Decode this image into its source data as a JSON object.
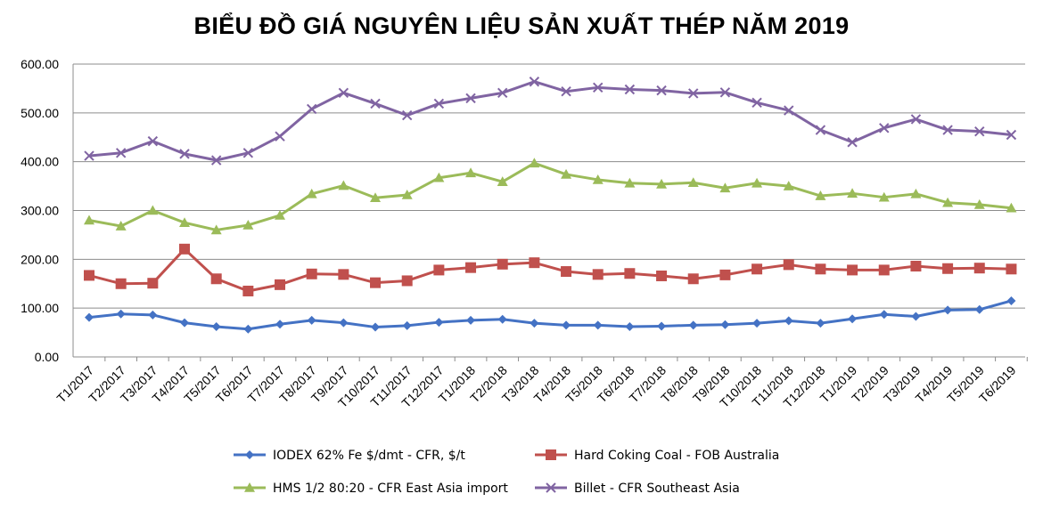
{
  "chart_data": {
    "type": "line",
    "title": "BIỂU ĐỒ GIÁ NGUYÊN LIỆU SẢN XUẤT THÉP NĂM 2019",
    "xlabel": "",
    "ylabel": "",
    "ylim": [
      0,
      600
    ],
    "y_ticks": [
      "0.00",
      "100.00",
      "200.00",
      "300.00",
      "400.00",
      "500.00",
      "600.00"
    ],
    "grid": true,
    "legend_position": "bottom",
    "categories": [
      "T1/2017",
      "T2/2017",
      "T3/2017",
      "T4/2017",
      "T5/2017",
      "T6/2017",
      "T7/2017",
      "T8/2017",
      "T9/2017",
      "T10/2017",
      "T11/2017",
      "T12/2017",
      "T1/2018",
      "T2/2018",
      "T3/2018",
      "T4/2018",
      "T5/2018",
      "T6/2018",
      "T7/2018",
      "T8/2018",
      "T9/2018",
      "T10/2018",
      "T11/2018",
      "T12/2018",
      "T1/2019",
      "T2/2019",
      "T3/2019",
      "T4/2019",
      "T5/2019",
      "T6/2019"
    ],
    "series": [
      {
        "name": "IODEX 62% Fe $/dmt - CFR, $/t",
        "color": "#4472C4",
        "marker": "diamond",
        "values": [
          81,
          88,
          86,
          70,
          62,
          57,
          67,
          75,
          70,
          61,
          64,
          71,
          75,
          77,
          69,
          65,
          65,
          62,
          63,
          65,
          66,
          69,
          74,
          69,
          78,
          87,
          83,
          96,
          97,
          115
        ]
      },
      {
        "name": "Hard Coking Coal - FOB Australia",
        "color": "#C0504D",
        "marker": "square",
        "values": [
          167,
          150,
          151,
          221,
          160,
          135,
          148,
          170,
          169,
          152,
          156,
          178,
          183,
          190,
          193,
          175,
          169,
          171,
          166,
          160,
          168,
          180,
          189,
          180,
          178,
          178,
          186,
          181,
          182,
          180
        ]
      },
      {
        "name": "HMS 1/2 80:20 - CFR East Asia import",
        "color": "#9BBB59",
        "marker": "triangle",
        "values": [
          280,
          268,
          300,
          275,
          260,
          270,
          290,
          334,
          351,
          326,
          332,
          367,
          377,
          359,
          397,
          374,
          363,
          356,
          354,
          357,
          346,
          356,
          350,
          330,
          335,
          327,
          334,
          316,
          312,
          305
        ]
      },
      {
        "name": "Billet - CFR Southeast Asia",
        "color": "#8064A2",
        "marker": "x",
        "values": [
          412,
          418,
          442,
          416,
          403,
          418,
          452,
          508,
          541,
          519,
          495,
          519,
          530,
          541,
          564,
          544,
          552,
          548,
          546,
          540,
          542,
          521,
          505,
          465,
          440,
          469,
          487,
          465,
          462,
          455
        ]
      }
    ]
  }
}
